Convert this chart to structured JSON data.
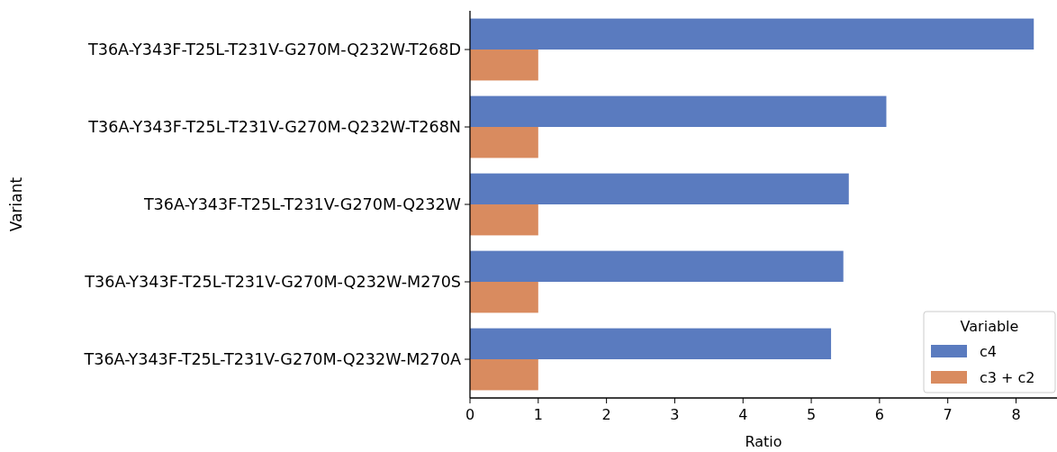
{
  "chart_data": {
    "type": "bar",
    "orientation": "horizontal",
    "xlabel": "Ratio",
    "ylabel": "Variant",
    "legend_title": "Variable",
    "legend": "bottom right",
    "grid": false,
    "categories": [
      "T36A-Y343F-T25L-T231V-G270M-Q232W-T268D",
      "T36A-Y343F-T25L-T231V-G270M-Q232W-T268N",
      "T36A-Y343F-T25L-T231V-G270M-Q232W",
      "T36A-Y343F-T25L-T231V-G270M-Q232W-M270S",
      "T36A-Y343F-T25L-T231V-G270M-Q232W-M270A"
    ],
    "series": [
      {
        "name": "c4",
        "color": "#5a7bbf",
        "values": [
          8.26,
          6.1,
          5.55,
          5.47,
          5.29
        ]
      },
      {
        "name": "c3 + c2",
        "color": "#d98b5f",
        "values": [
          1,
          1,
          1,
          1,
          1
        ]
      }
    ],
    "xlim": [
      0,
      8.6
    ],
    "xticks": [
      0,
      1,
      2,
      3,
      4,
      5,
      6,
      7,
      8
    ]
  }
}
